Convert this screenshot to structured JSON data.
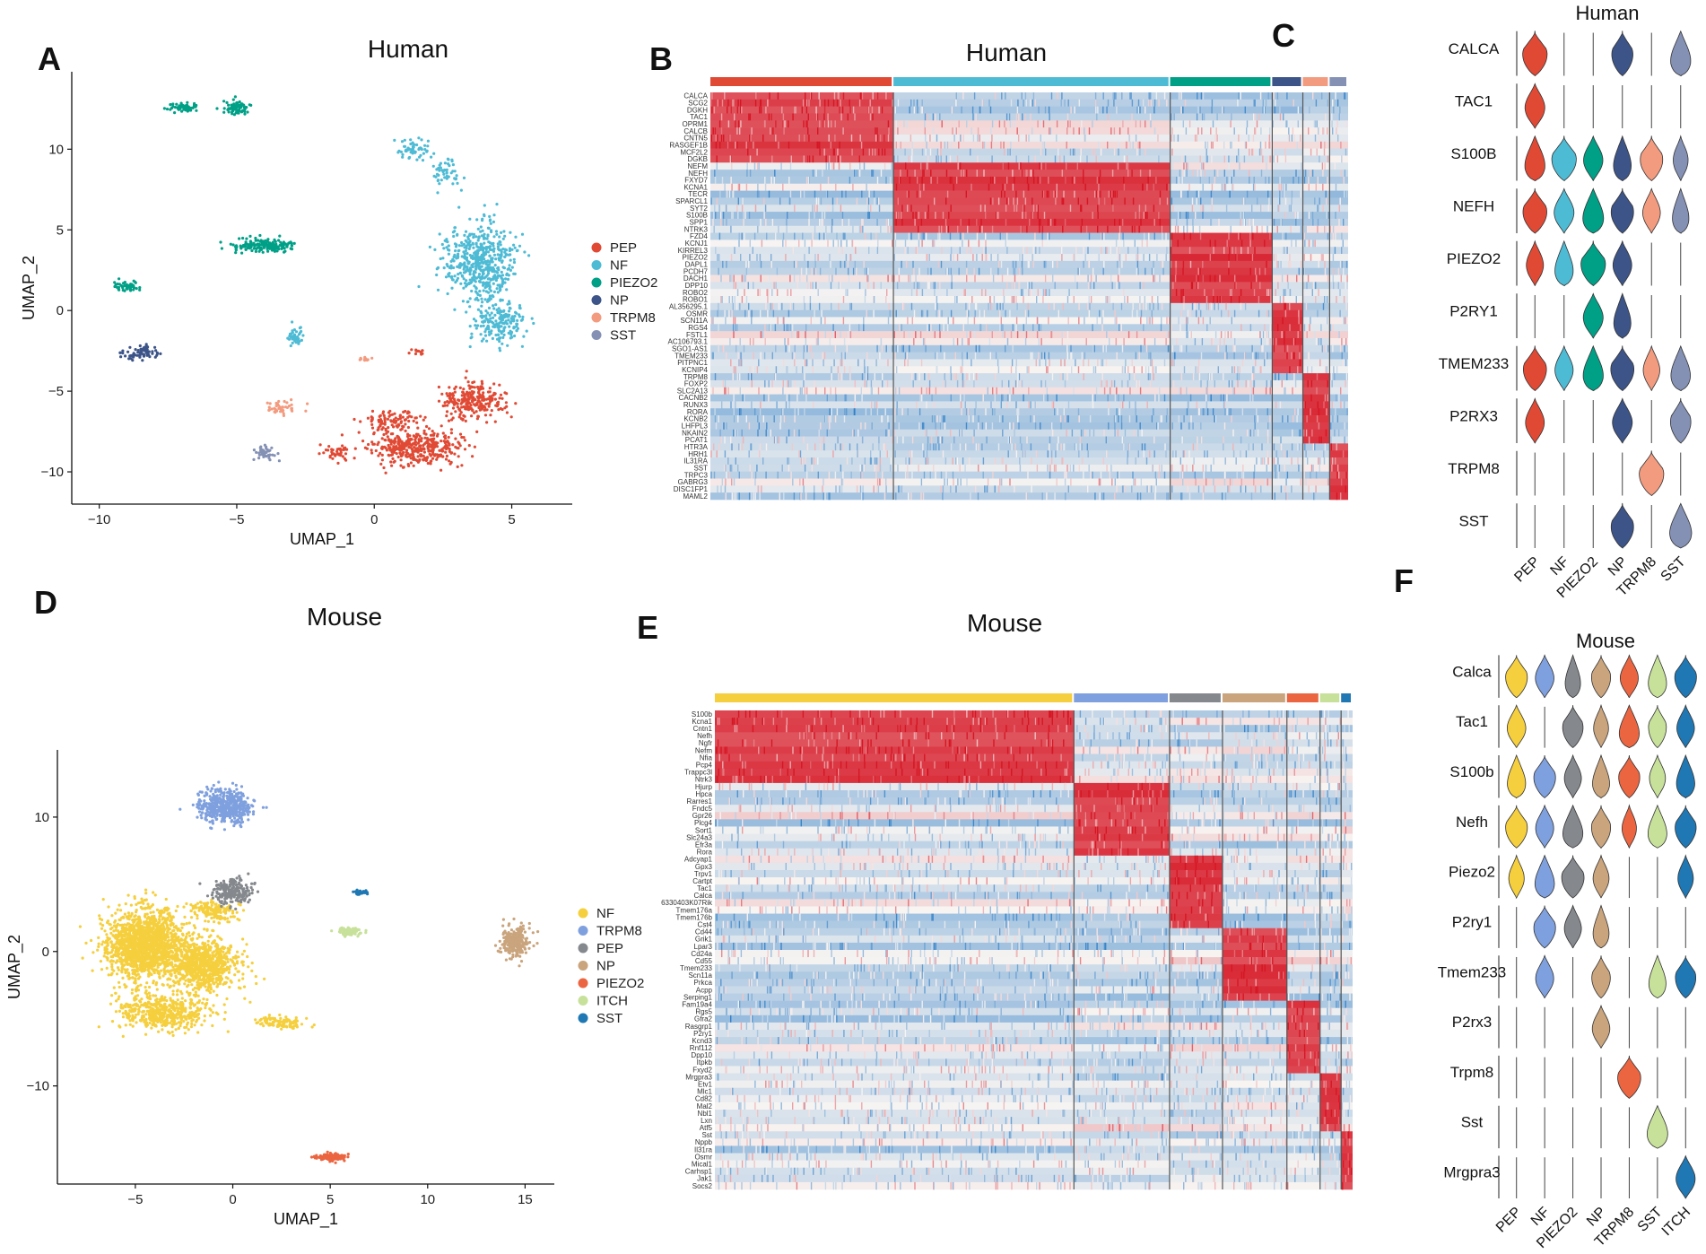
{
  "figure": {
    "panels": {
      "A": "A",
      "B": "B",
      "C": "C",
      "D": "D",
      "E": "E",
      "F": "F"
    }
  },
  "chart_data": [
    {
      "id": "A",
      "type": "scatter",
      "title": "Human",
      "xlabel": "UMAP_1",
      "ylabel": "UMAP_2",
      "xlim": [
        -11,
        7.2
      ],
      "ylim": [
        -12,
        14.8
      ],
      "xticks": [
        -10,
        -5,
        0,
        5
      ],
      "yticks": [
        -10,
        -5,
        0,
        5,
        10
      ],
      "legend_position": "right",
      "series": [
        {
          "name": "PEP",
          "color": "#E04A35",
          "clusters": [
            {
              "cx": 1.5,
              "cy": -8.5,
              "sx": 1.4,
              "sy": 1.0,
              "n": 380
            },
            {
              "cx": 3.6,
              "cy": -5.5,
              "sx": 1.1,
              "sy": 1.0,
              "n": 260
            },
            {
              "cx": 0.6,
              "cy": -6.8,
              "sx": 0.9,
              "sy": 0.6,
              "n": 90
            },
            {
              "cx": -1.3,
              "cy": -8.8,
              "sx": 0.5,
              "sy": 0.5,
              "n": 40
            },
            {
              "cx": 1.6,
              "cy": -2.5,
              "sx": 0.3,
              "sy": 0.2,
              "n": 12
            }
          ]
        },
        {
          "name": "NF",
          "color": "#4EBBD5",
          "clusters": [
            {
              "cx": 3.8,
              "cy": 3.0,
              "sx": 1.2,
              "sy": 2.2,
              "n": 550
            },
            {
              "cx": 4.6,
              "cy": -0.8,
              "sx": 0.9,
              "sy": 1.2,
              "n": 180
            },
            {
              "cx": 1.5,
              "cy": 10.0,
              "sx": 0.6,
              "sy": 0.6,
              "n": 60
            },
            {
              "cx": 2.6,
              "cy": 8.5,
              "sx": 0.5,
              "sy": 0.8,
              "n": 50
            },
            {
              "cx": -2.9,
              "cy": -1.6,
              "sx": 0.2,
              "sy": 0.6,
              "n": 40
            }
          ]
        },
        {
          "name": "PIEZO2",
          "color": "#00A087",
          "clusters": [
            {
              "cx": -7.0,
              "cy": 12.6,
              "sx": 0.5,
              "sy": 0.25,
              "n": 60
            },
            {
              "cx": -5.0,
              "cy": 12.6,
              "sx": 0.4,
              "sy": 0.4,
              "n": 70
            },
            {
              "cx": -4.0,
              "cy": 4.0,
              "sx": 1.0,
              "sy": 0.4,
              "n": 160
            },
            {
              "cx": -9.0,
              "cy": 1.5,
              "sx": 0.6,
              "sy": 0.3,
              "n": 50
            }
          ]
        },
        {
          "name": "NP",
          "color": "#3C5488",
          "clusters": [
            {
              "cx": -8.5,
              "cy": -2.6,
              "sx": 0.7,
              "sy": 0.4,
              "n": 70
            }
          ]
        },
        {
          "name": "TRPM8",
          "color": "#F39B7F",
          "clusters": [
            {
              "cx": -3.2,
              "cy": -6.0,
              "sx": 0.7,
              "sy": 0.4,
              "n": 40
            },
            {
              "cx": -0.3,
              "cy": -3.0,
              "sx": 0.25,
              "sy": 0.12,
              "n": 12
            }
          ]
        },
        {
          "name": "SST",
          "color": "#8491B4",
          "clusters": [
            {
              "cx": -4.0,
              "cy": -8.8,
              "sx": 0.35,
              "sy": 0.4,
              "n": 40
            }
          ]
        }
      ]
    },
    {
      "id": "B",
      "type": "heatmap",
      "title": "Human",
      "groups": [
        {
          "name": "PEP",
          "color": "#E04A35",
          "width": 0.287
        },
        {
          "name": "NF",
          "color": "#4EBBD5",
          "width": 0.434
        },
        {
          "name": "PIEZO2",
          "color": "#00A087",
          "width": 0.16
        },
        {
          "name": "NP",
          "color": "#3C5488",
          "width": 0.048
        },
        {
          "name": "TRPM8",
          "color": "#F39B7F",
          "width": 0.042
        },
        {
          "name": "SST",
          "color": "#8491B4",
          "width": 0.029
        }
      ],
      "genes": [
        "CALCA",
        "SCG2",
        "DGKH",
        "TAC1",
        "OPRM1",
        "CALCB",
        "CNTN5",
        "RASGEF1B",
        "MCF2L2",
        "DGKB",
        "NEFM",
        "NEFH",
        "FXYD7",
        "KCNA1",
        "TECR",
        "SPARCL1",
        "SYT2",
        "S100B",
        "SPP1",
        "NTRK3",
        "FZD4",
        "KCNJ1",
        "KIRREL3",
        "PIEZO2",
        "DAPL1",
        "PCDH7",
        "DACH1",
        "DPP10",
        "ROBO2",
        "ROBO1",
        "AL356295.1",
        "OSMR",
        "SCN11A",
        "RGS4",
        "FSTL1",
        "AC106793.1",
        "SGO1-AS1",
        "TMEM233",
        "PITPNC1",
        "KCNIP4",
        "TRPM8",
        "FOXP2",
        "SLC2A13",
        "CACNB2",
        "RUNX3",
        "RORA",
        "KCNB2",
        "LHFPL3",
        "NKAIN2",
        "PCAT1",
        "HTR3A",
        "HRH1",
        "IL31RA",
        "SST",
        "TRPC3",
        "GABRG3",
        "DISC1FP1",
        "MAML2"
      ],
      "blocks": [
        [
          0,
          9
        ],
        [
          10,
          19
        ],
        [
          20,
          29
        ],
        [
          30,
          39
        ],
        [
          40,
          49
        ],
        [
          50,
          57
        ]
      ]
    },
    {
      "id": "C",
      "type": "violin",
      "title": "Human",
      "groups": [
        "PEP",
        "NF",
        "PIEZO2",
        "NP",
        "TRPM8",
        "SST"
      ],
      "colors": [
        "#E04A35",
        "#4EBBD5",
        "#00A087",
        "#3C5488",
        "#F39B7F",
        "#8491B4"
      ],
      "genes": [
        "CALCA",
        "TAC1",
        "S100B",
        "NEFH",
        "PIEZO2",
        "P2RY1",
        "TMEM233",
        "P2RX3",
        "TRPM8",
        "SST"
      ],
      "expression": [
        [
          1.0,
          0.08,
          0.03,
          0.75,
          0.02,
          0.85
        ],
        [
          1.0,
          0.05,
          0.02,
          0.05,
          0.03,
          0.05
        ],
        [
          0.85,
          1.0,
          0.95,
          0.65,
          0.85,
          0.55
        ],
        [
          0.95,
          1.0,
          0.9,
          0.85,
          0.8,
          0.55
        ],
        [
          0.75,
          0.7,
          1.0,
          0.9,
          0.05,
          0.05
        ],
        [
          0.03,
          0.05,
          1.0,
          0.6,
          0.03,
          0.03
        ],
        [
          0.9,
          0.85,
          0.85,
          0.9,
          0.7,
          0.8
        ],
        [
          0.9,
          0.05,
          0.05,
          1.0,
          0.05,
          0.7
        ],
        [
          0.04,
          0.04,
          0.04,
          0.03,
          1.0,
          0.03
        ],
        [
          0.04,
          0.04,
          0.03,
          0.85,
          0.03,
          1.0
        ]
      ]
    },
    {
      "id": "D",
      "type": "scatter",
      "title": "Mouse",
      "xlabel": "UMAP_1",
      "ylabel": "UMAP_2",
      "xlim": [
        -9,
        16.5
      ],
      "ylim": [
        -17.3,
        15
      ],
      "xticks": [
        -5,
        0,
        5,
        10,
        15
      ],
      "yticks": [
        -10,
        0,
        10
      ],
      "legend_position": "right",
      "series": [
        {
          "name": "NF",
          "color": "#F5CF3D",
          "clusters": [
            {
              "cx": -4.5,
              "cy": 0.5,
              "sx": 1.8,
              "sy": 2.4,
              "n": 1600
            },
            {
              "cx": -1.5,
              "cy": -1.0,
              "sx": 1.6,
              "sy": 1.8,
              "n": 800
            },
            {
              "cx": -3.5,
              "cy": -4.5,
              "sx": 2.2,
              "sy": 1.2,
              "n": 500
            },
            {
              "cx": 2.5,
              "cy": -5.3,
              "sx": 1.2,
              "sy": 0.4,
              "n": 100
            },
            {
              "cx": -1.0,
              "cy": 3.0,
              "sx": 1.0,
              "sy": 0.8,
              "n": 150
            }
          ]
        },
        {
          "name": "TRPM8",
          "color": "#7FA0DE",
          "clusters": [
            {
              "cx": -0.3,
              "cy": 10.8,
              "sx": 1.2,
              "sy": 1.1,
              "n": 500
            }
          ]
        },
        {
          "name": "PEP",
          "color": "#85888C",
          "clusters": [
            {
              "cx": 0.0,
              "cy": 4.5,
              "sx": 0.9,
              "sy": 0.9,
              "n": 220
            }
          ]
        },
        {
          "name": "NP",
          "color": "#C9A47C",
          "clusters": [
            {
              "cx": 14.5,
              "cy": 0.7,
              "sx": 0.6,
              "sy": 1.0,
              "n": 250
            }
          ]
        },
        {
          "name": "PIEZO2",
          "color": "#EB6540",
          "clusters": [
            {
              "cx": 5.0,
              "cy": -15.3,
              "sx": 0.7,
              "sy": 0.25,
              "n": 120
            }
          ]
        },
        {
          "name": "ITCH",
          "color": "#C7E19A",
          "clusters": [
            {
              "cx": 6.0,
              "cy": 1.5,
              "sx": 0.6,
              "sy": 0.3,
              "n": 80
            }
          ]
        },
        {
          "name": "SST",
          "color": "#1F78B4",
          "clusters": [
            {
              "cx": 6.5,
              "cy": 4.4,
              "sx": 0.35,
              "sy": 0.15,
              "n": 30
            }
          ]
        }
      ]
    },
    {
      "id": "E",
      "type": "heatmap",
      "title": "Mouse",
      "groups": [
        {
          "name": "NF",
          "color": "#F5CF3D",
          "width": 0.563
        },
        {
          "name": "TRPM8",
          "color": "#7FA0DE",
          "width": 0.15
        },
        {
          "name": "PEP",
          "color": "#85888C",
          "width": 0.083
        },
        {
          "name": "NP",
          "color": "#C9A47C",
          "width": 0.101
        },
        {
          "name": "PIEZO2",
          "color": "#EB6540",
          "width": 0.052
        },
        {
          "name": "ITCH",
          "color": "#C7E19A",
          "width": 0.033
        },
        {
          "name": "SST",
          "color": "#1F78B4",
          "width": 0.018
        }
      ],
      "genes": [
        "S100b",
        "Kcna1",
        "Cntn1",
        "Nefh",
        "Ngfr",
        "Nefm",
        "Nfia",
        "Pcp4",
        "Trappc3l",
        "Ntrk3",
        "Hjurp",
        "Hpca",
        "Rarres1",
        "Fndc5",
        "Gpr26",
        "Plcg4",
        "Sort1",
        "Slc24a3",
        "Efr3a",
        "Rora",
        "Adcyap1",
        "Gpx3",
        "Trpv1",
        "Cartpt",
        "Tac1",
        "Calca",
        "6330403K07Rik",
        "Tmem176a",
        "Tmem176b",
        "Cst4",
        "Cd44",
        "Grik1",
        "Lpar3",
        "Cd24a",
        "Cd55",
        "Tmem233",
        "Scn11a",
        "Prkca",
        "Acpp",
        "Serping1",
        "Fam19a4",
        "Rgs5",
        "Gfra2",
        "Rasgrp1",
        "P2ry1",
        "Kcnd3",
        "Rnf112",
        "Dpp10",
        "Itpkb",
        "Fxyd2",
        "Mrgpra3",
        "Etv1",
        "Mlc1",
        "Cd82",
        "Mal2",
        "Nbl1",
        "Lxn",
        "Atf5",
        "Sst",
        "Nppb",
        "Il31ra",
        "Osmr",
        "Mical1",
        "Carhsp1",
        "Jak1",
        "Socs2"
      ],
      "blocks": [
        [
          0,
          9
        ],
        [
          10,
          19
        ],
        [
          20,
          29
        ],
        [
          30,
          39
        ],
        [
          40,
          49
        ],
        [
          50,
          57
        ],
        [
          58,
          65
        ]
      ]
    },
    {
      "id": "F",
      "type": "violin",
      "title": "Mouse",
      "groups": [
        "PEP",
        "NF",
        "PIEZO2",
        "NP",
        "TRPM8",
        "SST",
        "ITCH"
      ],
      "colors": [
        "#F5CF3D",
        "#7FA0DE",
        "#85888C",
        "#C9A47C",
        "#EB6540",
        "#C7E19A",
        "#1F78B4"
      ],
      "genes": [
        "Calca",
        "Tac1",
        "S100b",
        "Nefh",
        "Piezo2",
        "P2ry1",
        "Tmem233",
        "P2rx3",
        "Trpm8",
        "Sst",
        "Mrgpra3"
      ],
      "expression": [
        [
          0.85,
          0.95,
          0.5,
          0.65,
          0.9,
          0.75,
          0.85
        ],
        [
          0.95,
          0.05,
          0.75,
          0.6,
          0.9,
          0.55,
          0.85
        ],
        [
          0.75,
          0.85,
          0.8,
          0.65,
          0.8,
          0.7,
          0.75
        ],
        [
          0.85,
          0.9,
          0.9,
          0.65,
          0.55,
          0.8,
          0.8
        ],
        [
          0.65,
          0.85,
          0.9,
          0.7,
          0.05,
          0.05,
          0.65
        ],
        [
          0.05,
          0.85,
          0.8,
          0.55,
          0.05,
          0.05,
          0.05
        ],
        [
          0.05,
          0.9,
          0.05,
          0.6,
          0.05,
          0.65,
          0.75
        ],
        [
          0.05,
          0.05,
          0.05,
          0.85,
          0.05,
          0.05,
          0.05
        ],
        [
          0.05,
          0.05,
          0.05,
          0.05,
          0.95,
          0.05,
          0.05
        ],
        [
          0.05,
          0.05,
          0.05,
          0.05,
          0.05,
          0.95,
          0.05
        ],
        [
          0.05,
          0.05,
          0.05,
          0.05,
          0.05,
          0.05,
          1.0
        ]
      ]
    }
  ]
}
